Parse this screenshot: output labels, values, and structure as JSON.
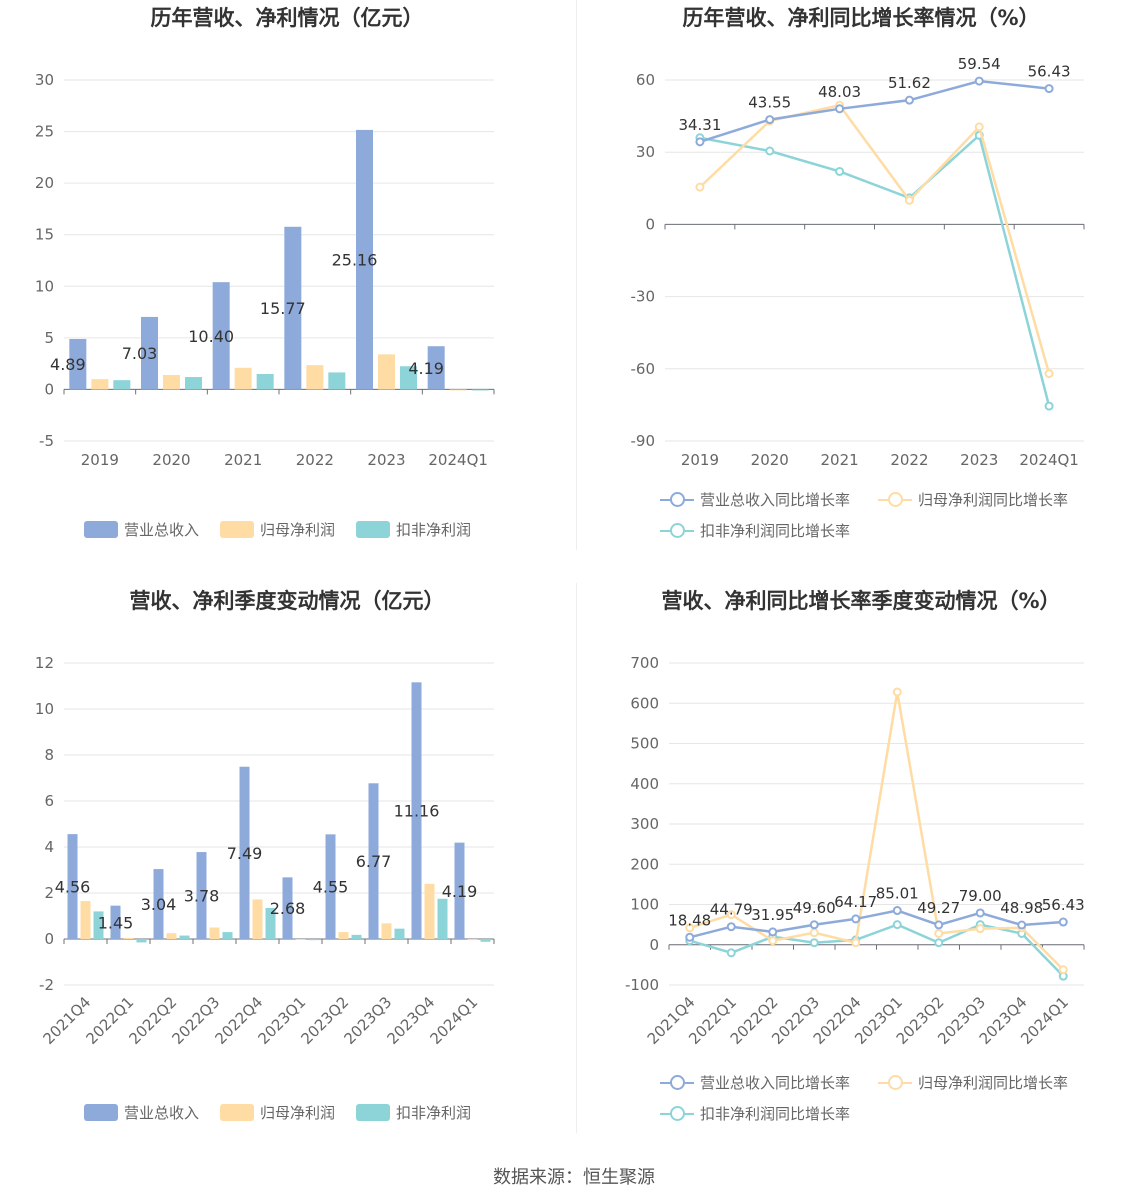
{
  "colors": {
    "revenue": "#8eaadb",
    "net_profit": "#ffdca3",
    "deducted_profit": "#8dd4d9"
  },
  "source": "数据来源：恒生聚源",
  "chart_data": [
    {
      "id": "annual-amount",
      "type": "bar",
      "title": "历年营收、净利情况（亿元）",
      "categories": [
        "2019",
        "2020",
        "2021",
        "2022",
        "2023",
        "2024Q1"
      ],
      "ylim": [
        -5,
        30
      ],
      "yticks": [
        -5,
        0,
        5,
        10,
        15,
        20,
        25,
        30
      ],
      "grid": true,
      "legend_position": "bottom",
      "series": [
        {
          "name": "营业总收入",
          "values": [
            4.89,
            7.03,
            10.4,
            15.77,
            25.16,
            4.19
          ],
          "labels": [
            "4.89",
            "7.03",
            "10.40",
            "15.77",
            "25.16",
            "4.19"
          ]
        },
        {
          "name": "归母净利润",
          "values": [
            1.0,
            1.4,
            2.1,
            2.35,
            3.4,
            -0.05
          ]
        },
        {
          "name": "扣非净利润",
          "values": [
            0.9,
            1.2,
            1.5,
            1.65,
            2.25,
            -0.1
          ]
        }
      ]
    },
    {
      "id": "annual-growth",
      "type": "line",
      "title": "历年营收、净利同比增长率情况（%）",
      "categories": [
        "2019",
        "2020",
        "2021",
        "2022",
        "2023",
        "2024Q1"
      ],
      "ylim": [
        -90,
        60
      ],
      "yticks": [
        -90,
        -60,
        -30,
        0,
        30,
        60
      ],
      "grid": true,
      "legend_position": "bottom",
      "series": [
        {
          "name": "营业总收入同比增长率",
          "values": [
            34.31,
            43.55,
            48.03,
            51.62,
            59.54,
            56.43
          ],
          "labels": [
            "34.31",
            "43.55",
            "48.03",
            "51.62",
            "59.54",
            "56.43"
          ]
        },
        {
          "name": "归母净利润同比增长率",
          "values": [
            15.5,
            43.0,
            49.5,
            10.0,
            40.5,
            -62.0
          ]
        },
        {
          "name": "扣非净利润同比增长率",
          "values": [
            36.0,
            30.5,
            22.0,
            11.0,
            37.0,
            -75.5
          ]
        }
      ]
    },
    {
      "id": "quarterly-amount",
      "type": "bar",
      "title": "营收、净利季度变动情况（亿元）",
      "categories": [
        "2021Q4",
        "2022Q1",
        "2022Q2",
        "2022Q3",
        "2022Q4",
        "2023Q1",
        "2023Q2",
        "2023Q3",
        "2023Q4",
        "2024Q1"
      ],
      "ylim": [
        -2,
        12
      ],
      "yticks": [
        -2,
        0,
        2,
        4,
        6,
        8,
        10,
        12
      ],
      "grid": true,
      "legend_position": "bottom",
      "series": [
        {
          "name": "营业总收入",
          "values": [
            4.56,
            1.45,
            3.04,
            3.78,
            7.49,
            2.68,
            4.55,
            6.77,
            11.16,
            4.19
          ],
          "labels": [
            "4.56",
            "1.45",
            "3.04",
            "3.78",
            "7.49",
            "2.68",
            "4.55",
            "6.77",
            "11.16",
            "4.19"
          ]
        },
        {
          "name": "归母净利润",
          "values": [
            1.65,
            0.05,
            0.25,
            0.5,
            1.72,
            -0.03,
            0.3,
            0.68,
            2.4,
            -0.05
          ]
        },
        {
          "name": "扣非净利润",
          "values": [
            1.2,
            -0.15,
            0.15,
            0.3,
            1.35,
            -0.05,
            0.18,
            0.45,
            1.75,
            -0.12
          ]
        }
      ]
    },
    {
      "id": "quarterly-growth",
      "type": "line",
      "title": "营收、净利同比增长率季度变动情况（%）",
      "categories": [
        "2021Q4",
        "2022Q1",
        "2022Q2",
        "2022Q3",
        "2022Q4",
        "2023Q1",
        "2023Q2",
        "2023Q3",
        "2023Q4",
        "2024Q1"
      ],
      "ylim": [
        -100,
        700
      ],
      "yticks": [
        -100,
        0,
        100,
        200,
        300,
        400,
        500,
        600,
        700
      ],
      "grid": true,
      "legend_position": "bottom",
      "series": [
        {
          "name": "营业总收入同比增长率",
          "values": [
            18.48,
            44.79,
            31.95,
            49.6,
            64.17,
            85.01,
            49.27,
            79.0,
            48.98,
            56.43
          ],
          "labels": [
            "18.48",
            "44.79",
            "31.95",
            "49.60",
            "64.17",
            "85.01",
            "49.27",
            "79.00",
            "48.98",
            "56.43"
          ]
        },
        {
          "name": "归母净利润同比增长率",
          "values": [
            42,
            75,
            10,
            30,
            5,
            628,
            28,
            40,
            42,
            -62
          ]
        },
        {
          "name": "扣非净利润同比增长率",
          "values": [
            10,
            -20,
            20,
            5,
            12,
            50,
            5,
            50,
            28,
            -78
          ]
        }
      ]
    }
  ]
}
